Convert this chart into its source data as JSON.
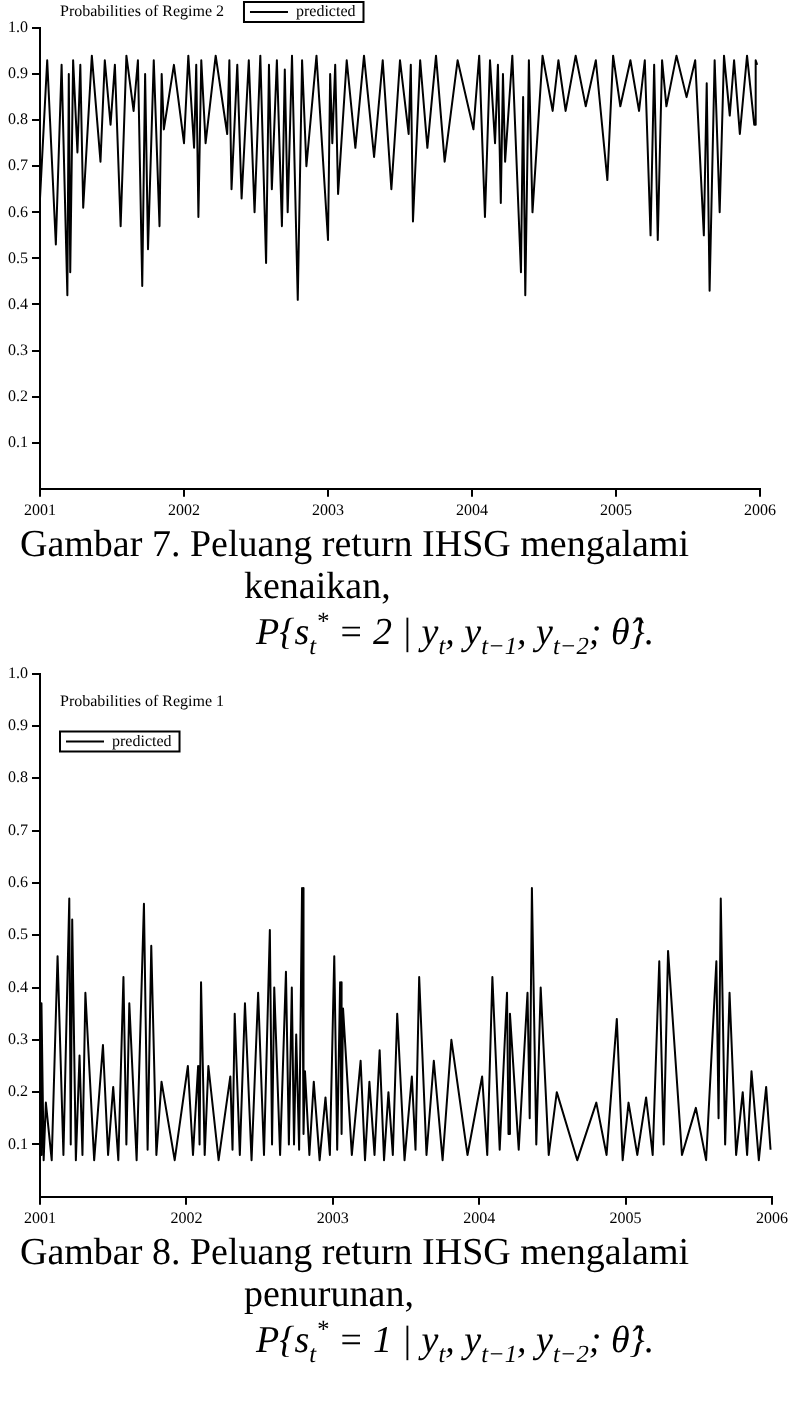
{
  "chart_data": [
    {
      "type": "line",
      "title": "Probabilities of Regime 2",
      "legend": "top left",
      "grid": false,
      "xlim": [
        2001,
        2006
      ],
      "xticks": [
        2001,
        2002,
        2003,
        2004,
        2005,
        2006
      ],
      "ylim": [
        0,
        1
      ],
      "yticks": [
        0.1,
        0.2,
        0.3,
        0.4,
        0.5,
        0.6,
        0.7,
        0.8,
        0.9,
        {
          "value": 1,
          "label": "1.0"
        }
      ],
      "annotations": [
        "Gambar 7. Peluang return IHSG mengalami kenaikan,",
        "P{s$_{t}$$^{*}$ = 2 | y$_{t}$, y$_{t−1}$, y$_{t−2}$; θ̂}."
      ],
      "series": [
        {
          "name": "predicted",
          "color": "#000000",
          "x": [
            2001.0,
            2001.05,
            2001.11,
            2001.15,
            2001.19,
            2001.2,
            2001.21,
            2001.23,
            2001.26,
            2001.28,
            2001.3,
            2001.36,
            2001.42,
            2001.45,
            2001.49,
            2001.52,
            2001.56,
            2001.6,
            2001.65,
            2001.68,
            2001.71,
            2001.73,
            2001.75,
            2001.79,
            2001.83,
            2001.845,
            2001.86,
            2001.93,
            2002.0,
            2002.03,
            2002.07,
            2002.085,
            2002.1,
            2002.12,
            2002.15,
            2002.22,
            2002.3,
            2002.315,
            2002.33,
            2002.37,
            2002.4,
            2002.45,
            2002.49,
            2002.53,
            2002.57,
            2002.59,
            2002.61,
            2002.645,
            2002.68,
            2002.7,
            2002.72,
            2002.75,
            2002.79,
            2002.82,
            2002.85,
            2002.92,
            2003.0,
            2003.015,
            2003.03,
            2003.05,
            2003.07,
            2003.13,
            2003.19,
            2003.25,
            2003.32,
            2003.38,
            2003.44,
            2003.5,
            2003.56,
            2003.575,
            2003.59,
            2003.64,
            2003.69,
            2003.75,
            2003.81,
            2003.9,
            2004.01,
            2004.05,
            2004.09,
            2004.125,
            2004.16,
            2004.18,
            2004.2,
            2004.215,
            2004.23,
            2004.28,
            2004.34,
            2004.355,
            2004.37,
            2004.395,
            2004.42,
            2004.49,
            2004.56,
            2004.6,
            2004.65,
            2004.72,
            2004.79,
            2004.86,
            2004.94,
            2004.98,
            2005.03,
            2005.1,
            2005.16,
            2005.2,
            2005.24,
            2005.265,
            2005.29,
            2005.32,
            2005.35,
            2005.42,
            2005.49,
            2005.55,
            2005.61,
            2005.63,
            2005.65,
            2005.685,
            2005.72,
            2005.75,
            2005.79,
            2005.82,
            2005.86,
            2005.91,
            2005.96,
            2005.97,
            2005.98
          ],
          "values": [
            0.63,
            0.93,
            0.53,
            0.92,
            0.42,
            0.9,
            0.47,
            0.93,
            0.73,
            0.92,
            0.61,
            0.94,
            0.71,
            0.93,
            0.79,
            0.92,
            0.57,
            0.94,
            0.82,
            0.93,
            0.44,
            0.9,
            0.52,
            0.93,
            0.57,
            0.9,
            0.78,
            0.92,
            0.75,
            0.94,
            0.74,
            0.92,
            0.59,
            0.93,
            0.75,
            0.94,
            0.77,
            0.93,
            0.65,
            0.92,
            0.63,
            0.93,
            0.6,
            0.94,
            0.49,
            0.92,
            0.65,
            0.93,
            0.57,
            0.91,
            0.6,
            0.94,
            0.41,
            0.93,
            0.7,
            0.94,
            0.54,
            0.9,
            0.75,
            0.92,
            0.64,
            0.93,
            0.74,
            0.94,
            0.72,
            0.93,
            0.65,
            0.93,
            0.77,
            0.92,
            0.58,
            0.93,
            0.74,
            0.94,
            0.71,
            0.93,
            0.78,
            0.94,
            0.59,
            0.93,
            0.75,
            0.92,
            0.62,
            0.9,
            0.71,
            0.94,
            0.47,
            0.85,
            0.42,
            0.93,
            0.6,
            0.94,
            0.82,
            0.93,
            0.82,
            0.94,
            0.83,
            0.93,
            0.67,
            0.94,
            0.83,
            0.93,
            0.82,
            0.93,
            0.55,
            0.92,
            0.54,
            0.93,
            0.83,
            0.94,
            0.85,
            0.93,
            0.55,
            0.88,
            0.43,
            0.93,
            0.6,
            0.94,
            0.81,
            0.93,
            0.77,
            0.94,
            0.79,
            0.93,
            0.92
          ]
        }
      ]
    },
    {
      "type": "line",
      "title": "Probabilities of Regime 1",
      "legend": "top left",
      "grid": false,
      "xlim": [
        2001,
        2006
      ],
      "xticks": [
        2001,
        2002,
        2003,
        2004,
        2005,
        2006
      ],
      "ylim": [
        0,
        1
      ],
      "yticks": [
        0.1,
        0.2,
        0.3,
        0.4,
        0.5,
        0.6,
        0.7,
        0.8,
        0.9,
        {
          "value": 1,
          "label": "1.0"
        }
      ],
      "annotations": [
        "Gambar 8. Peluang return IHSG mengalami penurunan,",
        "P{s$_{t}$$^{*}$ = 1 | y$_{t}$, y$_{t−1}$, y$_{t−2}$; θ̂}."
      ],
      "series": [
        {
          "name": "predicted",
          "color": "#000000",
          "x": [
            2001.0,
            2001.01,
            2001.025,
            2001.04,
            2001.08,
            2001.12,
            2001.16,
            2001.2,
            2001.21,
            2001.22,
            2001.245,
            2001.27,
            2001.29,
            2001.31,
            2001.37,
            2001.43,
            2001.465,
            2001.5,
            2001.535,
            2001.57,
            2001.59,
            2001.61,
            2001.66,
            2001.71,
            2001.735,
            2001.76,
            2001.795,
            2001.83,
            2001.92,
            2002.01,
            2002.045,
            2002.08,
            2002.09,
            2002.1,
            2002.125,
            2002.15,
            2002.22,
            2002.3,
            2002.315,
            2002.33,
            2002.365,
            2002.4,
            2002.445,
            2002.49,
            2002.53,
            2002.57,
            2002.585,
            2002.6,
            2002.64,
            2002.68,
            2002.7,
            2002.72,
            2002.735,
            2002.75,
            2002.77,
            2002.79,
            2002.8,
            2002.81,
            2002.84,
            2002.87,
            2002.91,
            2002.95,
            2002.98,
            2003.01,
            2003.03,
            2003.05,
            2003.06,
            2003.07,
            2003.13,
            2003.19,
            2003.22,
            2003.25,
            2003.285,
            2003.32,
            2003.35,
            2003.38,
            2003.41,
            2003.44,
            2003.49,
            2003.54,
            2003.565,
            2003.59,
            2003.64,
            2003.69,
            2003.75,
            2003.81,
            2003.92,
            2004.02,
            2004.055,
            2004.09,
            2004.14,
            2004.19,
            2004.2,
            2004.21,
            2004.27,
            2004.33,
            2004.345,
            2004.36,
            2004.39,
            2004.42,
            2004.475,
            2004.53,
            2004.67,
            2004.8,
            2004.87,
            2004.94,
            2004.98,
            2005.02,
            2005.08,
            2005.14,
            2005.185,
            2005.23,
            2005.26,
            2005.29,
            2005.385,
            2005.48,
            2005.55,
            2005.62,
            2005.635,
            2005.65,
            2005.68,
            2005.71,
            2005.755,
            2005.8,
            2005.83,
            2005.86,
            2005.91,
            2005.96,
            2005.99
          ],
          "values": [
            0.08,
            0.37,
            0.07,
            0.18,
            0.07,
            0.46,
            0.08,
            0.57,
            0.1,
            0.53,
            0.07,
            0.27,
            0.08,
            0.39,
            0.07,
            0.29,
            0.08,
            0.21,
            0.07,
            0.42,
            0.1,
            0.37,
            0.07,
            0.56,
            0.09,
            0.48,
            0.08,
            0.22,
            0.07,
            0.25,
            0.08,
            0.25,
            0.1,
            0.41,
            0.08,
            0.25,
            0.07,
            0.23,
            0.09,
            0.35,
            0.08,
            0.37,
            0.07,
            0.39,
            0.08,
            0.51,
            0.1,
            0.4,
            0.08,
            0.43,
            0.1,
            0.4,
            0.1,
            0.31,
            0.09,
            0.59,
            0.12,
            0.24,
            0.08,
            0.22,
            0.07,
            0.19,
            0.08,
            0.46,
            0.09,
            0.41,
            0.12,
            0.36,
            0.08,
            0.26,
            0.07,
            0.22,
            0.08,
            0.28,
            0.07,
            0.2,
            0.08,
            0.35,
            0.07,
            0.23,
            0.09,
            0.42,
            0.08,
            0.26,
            0.07,
            0.3,
            0.08,
            0.23,
            0.08,
            0.42,
            0.09,
            0.39,
            0.12,
            0.35,
            0.09,
            0.39,
            0.15,
            0.59,
            0.1,
            0.4,
            0.08,
            0.2,
            0.07,
            0.18,
            0.08,
            0.34,
            0.07,
            0.18,
            0.08,
            0.19,
            0.08,
            0.45,
            0.1,
            0.47,
            0.08,
            0.17,
            0.07,
            0.45,
            0.15,
            0.57,
            0.1,
            0.39,
            0.08,
            0.2,
            0.08,
            0.24,
            0.07,
            0.21,
            0.09
          ]
        }
      ]
    }
  ]
}
